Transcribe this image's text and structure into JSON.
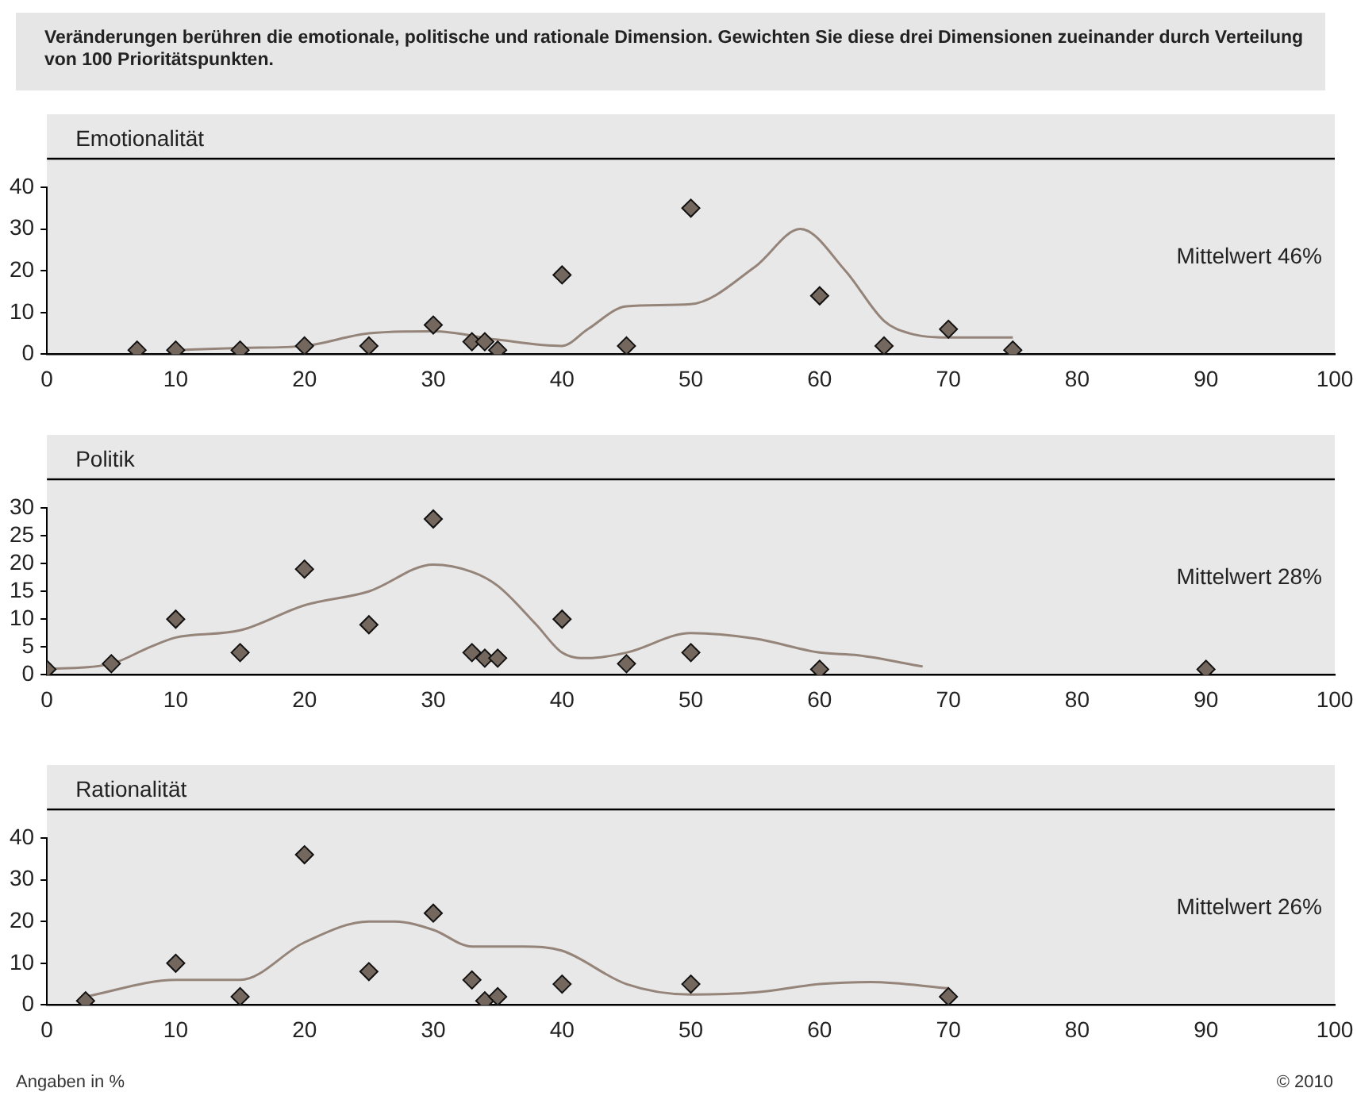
{
  "chart_data": [
    {
      "type": "other",
      "title": "Veränderungen berühren die emotionale, politische und rationale Dimension. Gewichten Sie diese drei Dimensionen zueinander durch Verteilung von 100 Prioritätspunkten."
    },
    {
      "type": "scatter",
      "title": "Emotionalität",
      "xlim": [
        0,
        100
      ],
      "xticks": [
        0,
        10,
        20,
        30,
        40,
        50,
        60,
        70,
        80,
        90,
        100
      ],
      "ylim": [
        0,
        40
      ],
      "yticks": [
        0,
        10,
        20,
        30,
        40
      ],
      "grid": false,
      "annotations": [
        "Mittelwert 46%"
      ],
      "series": [
        {
          "type": "scatter",
          "marker": "diamond",
          "color": "#74675e",
          "x": [
            7,
            10,
            15,
            20,
            25,
            30,
            33,
            34,
            35,
            40,
            45,
            50,
            60,
            65,
            70,
            75
          ],
          "values": [
            1,
            1,
            1,
            2,
            2,
            7,
            3,
            3,
            1,
            19,
            2,
            35,
            14,
            2,
            6,
            1
          ]
        },
        {
          "type": "line",
          "marker": "none",
          "color": "#958479",
          "x": [
            10,
            15,
            20,
            25,
            30,
            35,
            40,
            42,
            45,
            50,
            55,
            58.5,
            62,
            65,
            67,
            70,
            75
          ],
          "values": [
            1,
            1.5,
            2,
            5,
            5.5,
            3.5,
            2,
            6,
            11.5,
            12,
            21,
            30,
            20,
            8,
            5,
            4,
            4
          ]
        }
      ]
    },
    {
      "type": "scatter",
      "title": "Politik",
      "xlim": [
        0,
        100
      ],
      "xticks": [
        0,
        10,
        20,
        30,
        40,
        50,
        60,
        70,
        80,
        90,
        100
      ],
      "ylim": [
        0,
        30
      ],
      "yticks": [
        0,
        5,
        10,
        15,
        20,
        25,
        30
      ],
      "grid": false,
      "annotations": [
        "Mittelwert 28%"
      ],
      "series": [
        {
          "type": "scatter",
          "marker": "diamond",
          "color": "#74675e",
          "x": [
            0,
            5,
            10,
            15,
            20,
            25,
            30,
            33,
            34,
            35,
            40,
            45,
            50,
            60,
            90
          ],
          "values": [
            1,
            2,
            10,
            4,
            19,
            9,
            28,
            4,
            3,
            3,
            10,
            2,
            4,
            1,
            1
          ]
        },
        {
          "type": "line",
          "marker": "none",
          "color": "#958479",
          "x": [
            0,
            5,
            8,
            10,
            15,
            20,
            25,
            30,
            33,
            35,
            38,
            40,
            42,
            45,
            50,
            55,
            60,
            63,
            68
          ],
          "values": [
            1,
            2,
            5,
            6.7,
            8,
            12.5,
            15,
            19.8,
            18.5,
            16,
            9,
            4,
            3,
            4,
            7.5,
            6.5,
            4,
            3.5,
            1.5
          ]
        }
      ]
    },
    {
      "type": "scatter",
      "title": "Rationalität",
      "xlim": [
        0,
        100
      ],
      "xticks": [
        0,
        10,
        20,
        30,
        40,
        50,
        60,
        70,
        80,
        90,
        100
      ],
      "ylim": [
        0,
        40
      ],
      "yticks": [
        0,
        10,
        20,
        30,
        40
      ],
      "grid": false,
      "annotations": [
        "Mittelwert 26%",
        "Angaben in %",
        "© 2010"
      ],
      "series": [
        {
          "type": "scatter",
          "marker": "diamond",
          "color": "#74675e",
          "x": [
            3,
            10,
            15,
            20,
            25,
            30,
            33,
            34,
            35,
            40,
            50,
            70
          ],
          "values": [
            1,
            10,
            2,
            36,
            8,
            22,
            6,
            1,
            2,
            5,
            5,
            2
          ]
        },
        {
          "type": "line",
          "marker": "none",
          "color": "#958479",
          "x": [
            3,
            10,
            15,
            20,
            25,
            27,
            30,
            33,
            37,
            40,
            45,
            50,
            55,
            60,
            64,
            70
          ],
          "values": [
            2,
            6,
            6,
            15,
            20,
            20,
            18,
            14,
            14,
            13,
            5,
            2.5,
            3,
            5,
            5.5,
            4
          ]
        }
      ]
    }
  ]
}
